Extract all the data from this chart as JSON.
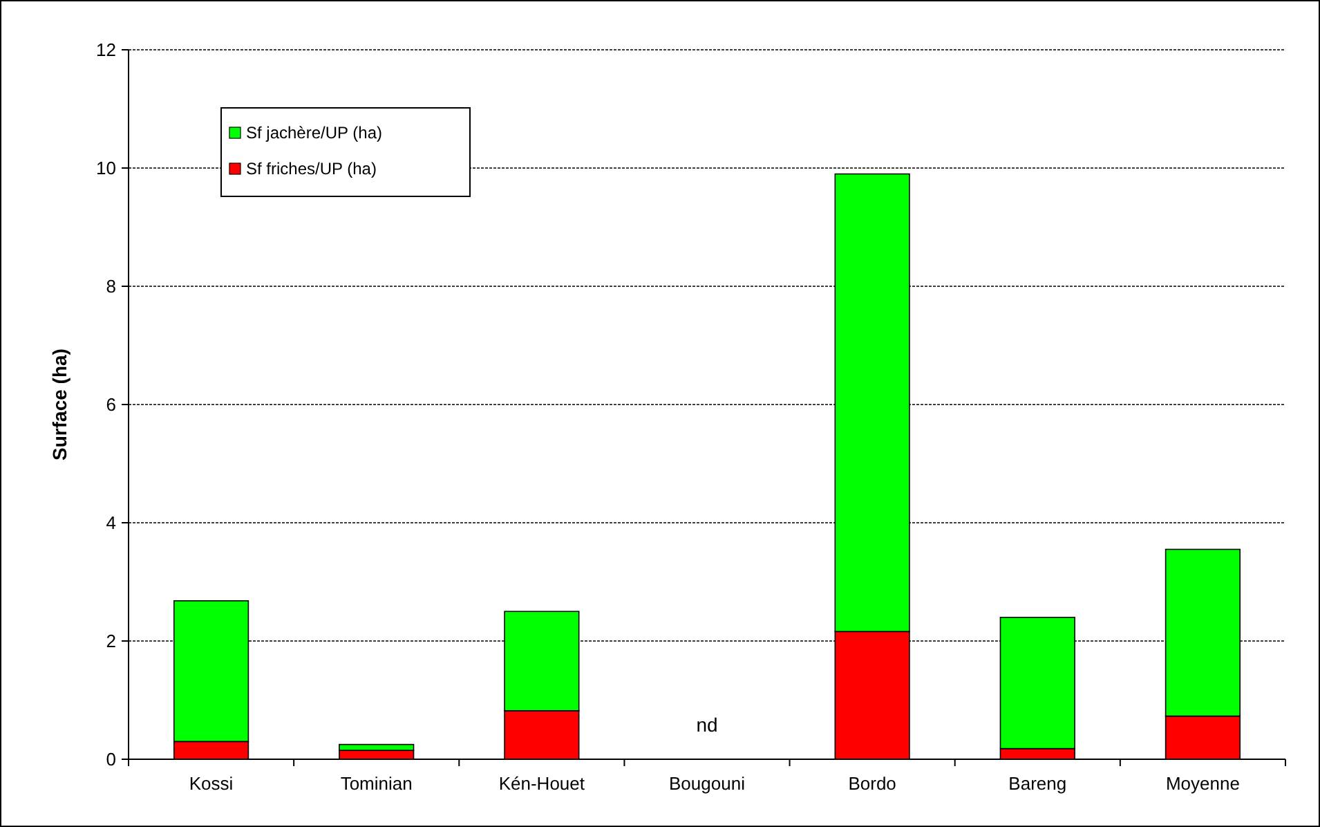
{
  "chart_data": {
    "type": "bar",
    "stacked": true,
    "ylabel": "Surface (ha)",
    "categories": [
      "Kossi",
      "Tominian",
      "Kén-Houet",
      "Bougouni",
      "Bordo",
      "Bareng",
      "Moyenne"
    ],
    "series": [
      {
        "name": "Sf friches/UP (ha)",
        "color": "#ff0000",
        "values": [
          0.3,
          0.15,
          0.82,
          null,
          2.16,
          0.18,
          0.73
        ]
      },
      {
        "name": "Sf jachère/UP (ha)",
        "color": "#00ff00",
        "values": [
          2.38,
          0.1,
          1.68,
          null,
          7.74,
          2.22,
          2.82
        ]
      }
    ],
    "ylim": [
      0,
      12
    ],
    "yticks": [
      0,
      2,
      4,
      6,
      8,
      10,
      12
    ],
    "grid": "y",
    "legend": "top left",
    "annotations": [
      "nd"
    ]
  }
}
